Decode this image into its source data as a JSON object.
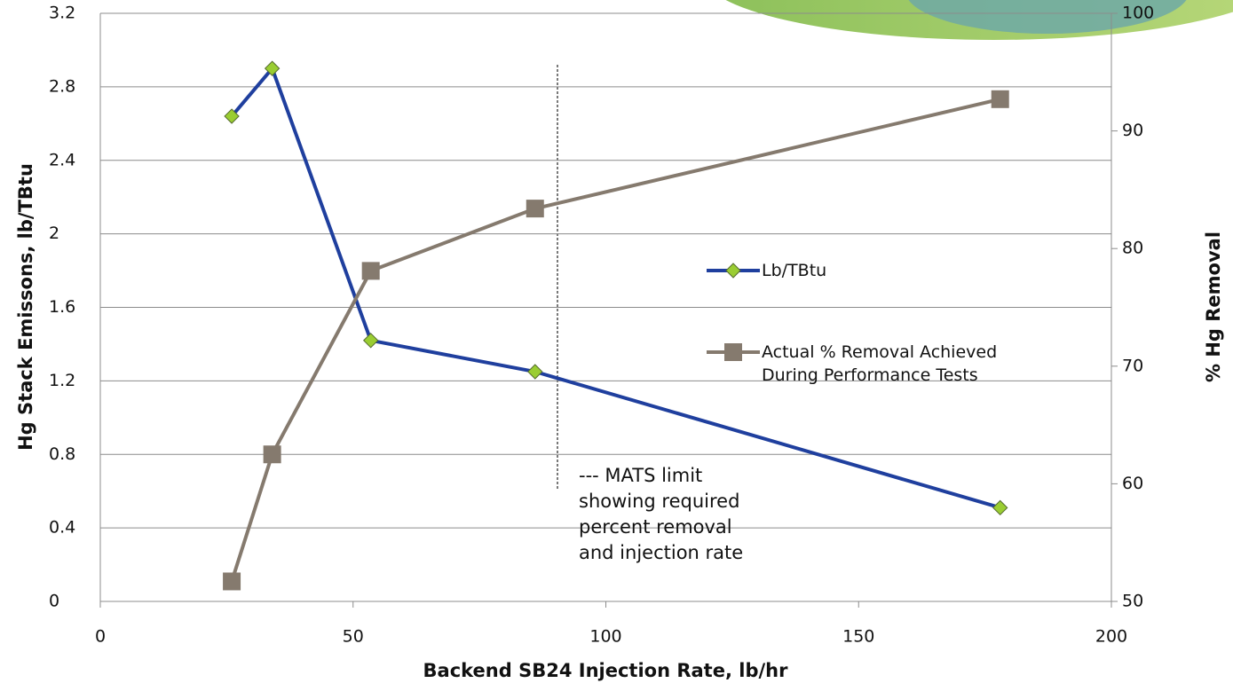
{
  "chart_data": {
    "type": "line",
    "x_label": "Backend SB24 Injection Rate, lb/hr",
    "y_label": "Hg Stack Emissons, lb/TBtu",
    "y2_label": "% Hg Removal",
    "annotation": [
      "--- MATS limit",
      "showing required",
      "percent removal",
      "and injection rate"
    ],
    "xlim": [
      0,
      200
    ],
    "xticks": [
      0,
      50,
      100,
      150,
      200
    ],
    "ylim": [
      0,
      3.2
    ],
    "yticks": [
      0,
      0.4,
      0.8,
      1.2,
      1.6,
      2,
      2.4,
      2.8,
      3.2
    ],
    "y2lim": [
      50,
      100
    ],
    "y2ticks": [
      50,
      60,
      70,
      80,
      90,
      100
    ],
    "grid": true,
    "series": [
      {
        "name": "Lb/TBtu",
        "color": "#1f3f9e",
        "marker": "diamond",
        "x": [
          26,
          34,
          53.5,
          86,
          178
        ],
        "values": [
          2.64,
          2.9,
          1.42,
          1.25,
          0.51
        ]
      },
      {
        "name": "Actual % Removal Achieved During Performance Tests",
        "color": "#857a6e",
        "marker": "square",
        "axis": "y2",
        "x": [
          26,
          34,
          53.5,
          86,
          178
        ],
        "values": [
          51.7,
          62.5,
          78.1,
          83.4,
          92.7
        ]
      }
    ]
  }
}
